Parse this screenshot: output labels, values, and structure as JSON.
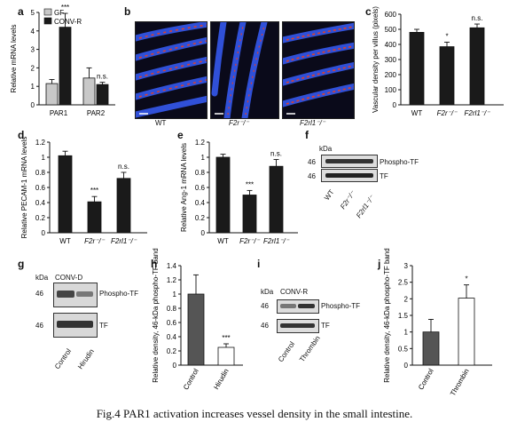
{
  "caption": "Fig.4 PAR1 activation increases vessel density in the small intestine.",
  "panels": {
    "b": {
      "letter": "b",
      "labels": [
        "WT",
        "F2r⁻/⁻",
        "F2rl1⁻/⁻"
      ]
    },
    "f": {
      "letter": "f",
      "kda": "kDa",
      "mw": [
        "46",
        "46"
      ],
      "bands": [
        "Phospho-TF",
        "TF"
      ],
      "lanes": [
        "WT",
        "F2r⁻/⁻",
        "F2rl1⁻/⁻"
      ]
    },
    "g": {
      "letter": "g",
      "kda": "kDa",
      "header": "CONV-D",
      "mw": [
        "46",
        "46"
      ],
      "bands": [
        "Phospho-TF",
        "TF"
      ],
      "lanes": [
        "Control",
        "Hirudin"
      ]
    },
    "i": {
      "letter": "i",
      "kda": "kDa",
      "header": "CONV-R",
      "mw": [
        "46",
        "46"
      ],
      "bands": [
        "Phospho-TF",
        "TF"
      ],
      "lanes": [
        "Control",
        "Thrombin"
      ]
    }
  },
  "colors": {
    "gf": "#c8c8c8",
    "convr": "#1a1a1a",
    "dark": "#1a1a1a",
    "mid": "#555555",
    "white": "#ffffff",
    "vessel": "#e0402a",
    "nuclei": "#3050d8"
  },
  "chart_data": [
    {
      "id": "a",
      "type": "bar",
      "ylabel": "Relative mRNA levels",
      "categories": [
        "PAR1",
        "PAR2"
      ],
      "ylim": [
        0,
        5
      ],
      "yticks": [
        0,
        1,
        2,
        3,
        4,
        5
      ],
      "series": [
        {
          "name": "GF",
          "color": "#c8c8c8",
          "values": [
            1.15,
            1.45
          ],
          "errors": [
            0.22,
            0.55
          ]
        },
        {
          "name": "CONV-R",
          "color": "#1a1a1a",
          "values": [
            4.2,
            1.1
          ],
          "errors": [
            0.75,
            0.12
          ]
        }
      ],
      "annotations": [
        {
          "category": 0,
          "series": 1,
          "text": "***"
        },
        {
          "category": 1,
          "series": 1,
          "text": "n.s."
        }
      ],
      "legend": "top-left"
    },
    {
      "id": "c",
      "type": "bar",
      "ylabel": "Vascular density per villus (pixels)",
      "categories": [
        "WT",
        "F2r⁻/⁻",
        "F2rl1⁻/⁻"
      ],
      "ylim": [
        0,
        600
      ],
      "yticks": [
        0,
        100,
        200,
        300,
        400,
        500,
        600
      ],
      "series": [
        {
          "color": "#1a1a1a",
          "values": [
            480,
            385,
            510
          ],
          "errors": [
            20,
            30,
            25
          ]
        }
      ],
      "annotations": [
        {
          "category": 1,
          "text": "*"
        },
        {
          "category": 2,
          "text": "n.s."
        }
      ]
    },
    {
      "id": "d",
      "type": "bar",
      "ylabel": "Relative PECAM-1 mRNA levels",
      "categories": [
        "WT",
        "F2r⁻/⁻",
        "F2rl1⁻/⁻"
      ],
      "ylim": [
        0,
        1.2
      ],
      "yticks": [
        0,
        0.2,
        0.4,
        0.6,
        0.8,
        1.0,
        1.2
      ],
      "series": [
        {
          "color": "#1a1a1a",
          "values": [
            1.02,
            0.41,
            0.72
          ],
          "errors": [
            0.06,
            0.07,
            0.08
          ]
        }
      ],
      "annotations": [
        {
          "category": 1,
          "text": "***"
        },
        {
          "category": 2,
          "text": "n.s."
        }
      ]
    },
    {
      "id": "e",
      "type": "bar",
      "ylabel": "Relative Ang-1 mRNA levels",
      "categories": [
        "WT",
        "F2r⁻/⁻",
        "F2rl1⁻/⁻"
      ],
      "ylim": [
        0,
        1.2
      ],
      "yticks": [
        0,
        0.2,
        0.4,
        0.6,
        0.8,
        1.0,
        1.2
      ],
      "series": [
        {
          "color": "#1a1a1a",
          "values": [
            1.0,
            0.5,
            0.88
          ],
          "errors": [
            0.04,
            0.06,
            0.09
          ]
        }
      ],
      "annotations": [
        {
          "category": 1,
          "text": "***"
        },
        {
          "category": 2,
          "text": "n.s."
        }
      ]
    },
    {
      "id": "h",
      "type": "bar",
      "ylabel": "Relative density, 46-kDa phospho-TF band",
      "categories": [
        "Control",
        "Hirudin"
      ],
      "ylim": [
        0,
        1.4
      ],
      "yticks": [
        0,
        0.2,
        0.4,
        0.6,
        0.8,
        1.0,
        1.2,
        1.4
      ],
      "series": [
        {
          "colors": [
            "#555555",
            "#ffffff"
          ],
          "values": [
            1.0,
            0.25
          ],
          "errors": [
            0.27,
            0.05
          ]
        }
      ],
      "annotations": [
        {
          "category": 1,
          "text": "***"
        }
      ]
    },
    {
      "id": "j",
      "type": "bar",
      "ylabel": "Relative density, 46-kDa phospho-TF band",
      "categories": [
        "Control",
        "Thrombin"
      ],
      "ylim": [
        0,
        3.0
      ],
      "yticks": [
        0,
        0.5,
        1.0,
        1.5,
        2.0,
        2.5,
        3.0
      ],
      "series": [
        {
          "colors": [
            "#555555",
            "#ffffff"
          ],
          "values": [
            1.0,
            2.02
          ],
          "errors": [
            0.38,
            0.4
          ]
        }
      ],
      "annotations": [
        {
          "category": 1,
          "text": "*"
        }
      ]
    }
  ]
}
